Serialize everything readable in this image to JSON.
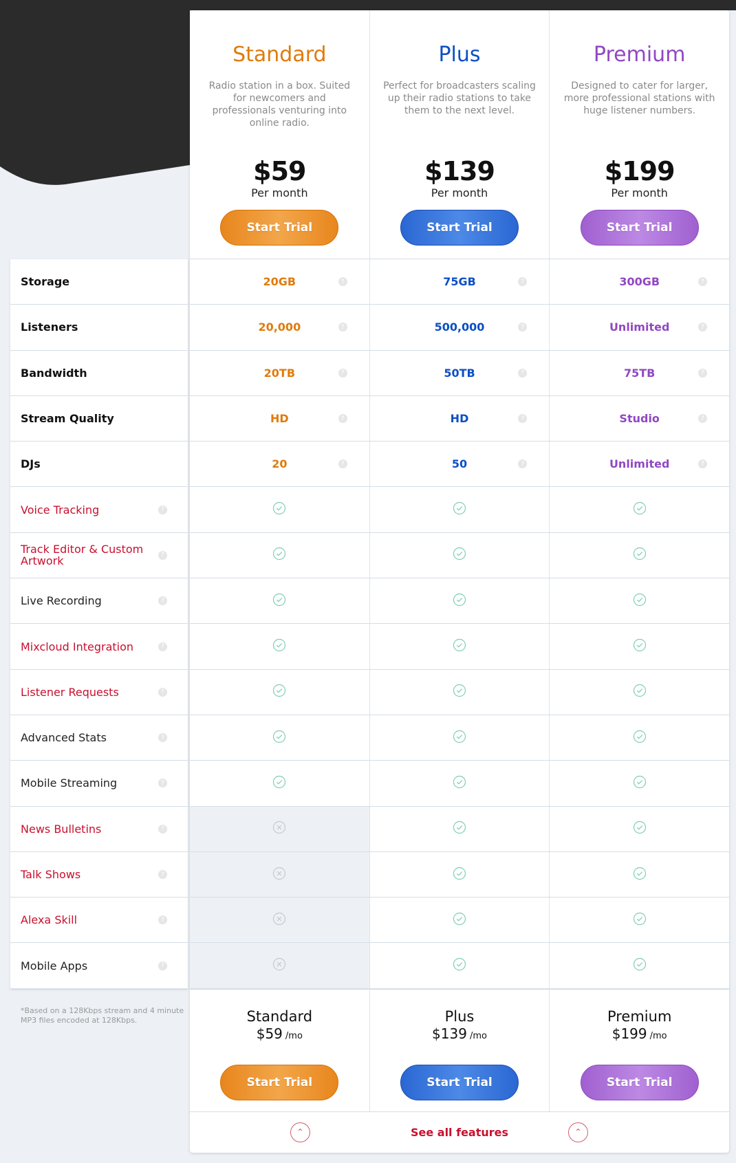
{
  "colors": {
    "standard": "#e07b0c",
    "plus": "#0b4fc5",
    "premium": "#9147c4",
    "check": "#7fcfb0",
    "cross": "#c8c8c8",
    "link_label": "#c8102e",
    "plain_label": "#222222"
  },
  "plans": [
    {
      "name": "Standard",
      "description": "Radio station in a box. Suited for newcomers and professionals venturing into online radio.",
      "price": "$59",
      "period": "Per month",
      "cta": "Start Trial",
      "footer_price": "$59",
      "footer_unit": "/mo"
    },
    {
      "name": "Plus",
      "description": "Perfect for broadcasters scaling up their radio stations to take them to the next level.",
      "price": "$139",
      "period": "Per month",
      "cta": "Start Trial",
      "footer_price": "$139",
      "footer_unit": "/mo"
    },
    {
      "name": "Premium",
      "description": "Designed to cater for larger, more professional stations with huge listener numbers.",
      "price": "$199",
      "period": "Per month",
      "cta": "Start Trial",
      "footer_price": "$199",
      "footer_unit": "/mo"
    }
  ],
  "value_rows": [
    {
      "label": "Storage",
      "values": [
        "20GB",
        "75GB",
        "300GB"
      ]
    },
    {
      "label": "Listeners",
      "values": [
        "20,000",
        "500,000",
        "Unlimited"
      ]
    },
    {
      "label": "Bandwidth",
      "values": [
        "20TB",
        "50TB",
        "75TB"
      ]
    },
    {
      "label": "Stream Quality",
      "values": [
        "HD",
        "HD",
        "Studio"
      ]
    },
    {
      "label": "DJs",
      "values": [
        "20",
        "50",
        "Unlimited"
      ]
    }
  ],
  "feature_rows": [
    {
      "label": "Voice Tracking",
      "link": true,
      "included": [
        true,
        true,
        true
      ]
    },
    {
      "label": "Track Editor & Custom Artwork",
      "link": true,
      "included": [
        true,
        true,
        true
      ]
    },
    {
      "label": "Live Recording",
      "link": false,
      "included": [
        true,
        true,
        true
      ]
    },
    {
      "label": "Mixcloud Integration",
      "link": true,
      "included": [
        true,
        true,
        true
      ]
    },
    {
      "label": "Listener Requests",
      "link": true,
      "included": [
        true,
        true,
        true
      ]
    },
    {
      "label": "Advanced Stats",
      "link": false,
      "included": [
        true,
        true,
        true
      ]
    },
    {
      "label": "Mobile Streaming",
      "link": false,
      "included": [
        true,
        true,
        true
      ]
    },
    {
      "label": "News Bulletins",
      "link": true,
      "included": [
        false,
        true,
        true
      ]
    },
    {
      "label": "Talk Shows",
      "link": true,
      "included": [
        false,
        true,
        true
      ]
    },
    {
      "label": "Alexa Skill",
      "link": true,
      "included": [
        false,
        true,
        true
      ]
    },
    {
      "label": "Mobile Apps",
      "link": false,
      "included": [
        false,
        true,
        true
      ]
    }
  ],
  "footnote": "*Based on a 128Kbps stream and 4 minute MP3 files encoded at 128Kbps.",
  "see_all": "See all features",
  "help_glyph": "?"
}
